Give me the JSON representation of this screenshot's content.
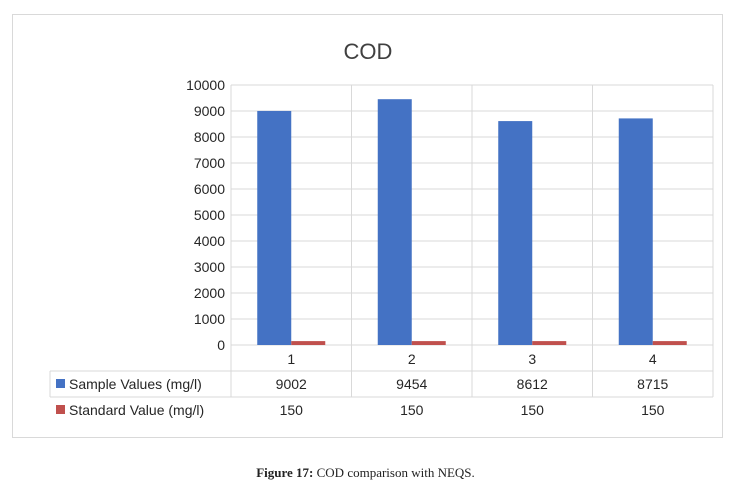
{
  "chart_data": {
    "type": "bar",
    "title": "COD",
    "categories": [
      "1",
      "2",
      "3",
      "4"
    ],
    "series": [
      {
        "name": "Sample Values (mg/l)",
        "values": [
          9002,
          9454,
          8612,
          8715
        ],
        "color": "#4472c4"
      },
      {
        "name": "Standard Value (mg/l)",
        "values": [
          150,
          150,
          150,
          150
        ],
        "color": "#c0504d"
      }
    ],
    "y_ticks": [
      "0",
      "1000",
      "2000",
      "3000",
      "4000",
      "5000",
      "6000",
      "7000",
      "8000",
      "9000",
      "10000"
    ],
    "ylim": [
      0,
      10000
    ],
    "grid": true,
    "legend": "data-table-below",
    "table_values": [
      [
        "9002",
        "9454",
        "8612",
        "8715"
      ],
      [
        "150",
        "150",
        "150",
        "150"
      ]
    ]
  },
  "caption": {
    "label": "Figure 17:",
    "text": " COD comparison with NEQS."
  }
}
